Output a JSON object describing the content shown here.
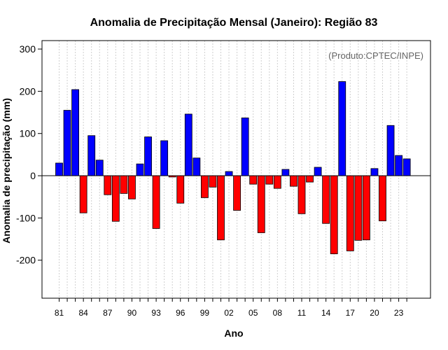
{
  "chart_data": {
    "type": "bar",
    "title": "Anomalia de Precipitação Mensal (Janeiro): Região 83",
    "xlabel": "Ano",
    "ylabel": "Anomalia de precipitação (mm)",
    "credit": "(Produto:CPTEC/INPE)",
    "ylim": [
      -290,
      320
    ],
    "yticks": [
      -200,
      -100,
      0,
      100,
      200,
      300
    ],
    "grid": "vertical dotted",
    "categories": [
      "81",
      "82",
      "83",
      "84",
      "85",
      "86",
      "87",
      "88",
      "89",
      "90",
      "91",
      "92",
      "93",
      "94",
      "95",
      "96",
      "97",
      "98",
      "99",
      "00",
      "01",
      "02",
      "03",
      "04",
      "05",
      "06",
      "07",
      "08",
      "09",
      "10",
      "11",
      "12",
      "13",
      "14",
      "15",
      "16",
      "17",
      "18",
      "19",
      "20",
      "21",
      "22",
      "23",
      "24"
    ],
    "xtick_labels": [
      "81",
      "84",
      "87",
      "90",
      "93",
      "96",
      "99",
      "02",
      "05",
      "08",
      "11",
      "14",
      "17",
      "20",
      "23"
    ],
    "values": [
      30,
      155,
      204,
      -88,
      95,
      37,
      -45,
      -108,
      -42,
      -55,
      28,
      92,
      -125,
      83,
      -3,
      -65,
      146,
      42,
      -52,
      -27,
      -152,
      10,
      -82,
      137,
      -20,
      -135,
      -20,
      -30,
      15,
      -25,
      -90,
      -15,
      20,
      -113,
      -185,
      223,
      -178,
      -153,
      -152,
      17,
      -107,
      119,
      48,
      40
    ],
    "positive_color": "#0000ff",
    "negative_color": "#ff0000"
  }
}
